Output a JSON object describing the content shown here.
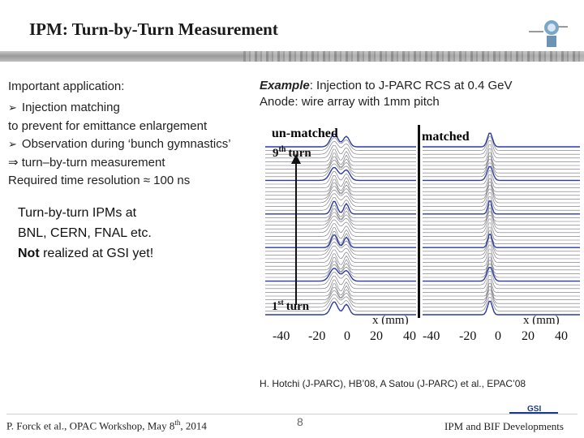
{
  "title": "IPM: Turn-by-Turn Measurement",
  "left": {
    "heading": "Important application:",
    "bullet1": "Injection matching",
    "bullet1_cont": "to prevent for emittance enlargement",
    "bullet2": "Observation during ‘bunch gymnastics’",
    "implies_symbol": "⇒",
    "implies_text": "turn–by-turn measurement",
    "resolution_prefix": "Required time resolution",
    "approx_symbol": "≈",
    "resolution_value": "100 ns"
  },
  "example": {
    "label": "Example",
    "text": ": Injection to J-PARC RCS at 0.4 GeV",
    "anode": "Anode: wire array with 1mm pitch"
  },
  "box": {
    "line1": "Turn-by-turn IPMs at",
    "line2": "BNL, CERN, FNAL etc.",
    "not": "Not",
    "line3_rest": " realized at GSI yet!"
  },
  "plot": {
    "label_unmatched": "un-matched",
    "label_matched": "matched",
    "turn_9_num": "9",
    "turn_9_sup": "th",
    "turn_9_word": "turn",
    "turn_1_num": "1",
    "turn_1_sup": "st",
    "turn_1_word": "turn",
    "xlabel_left": "x (mm)",
    "xlabel_right": "x (mm)",
    "ticks_left": [
      "-40",
      "-20",
      "0",
      "20",
      "40"
    ],
    "ticks_right": [
      "-40",
      "-20",
      "0",
      "20",
      "40"
    ]
  },
  "citation": "H. Hotchi (J-PARC), HB’08, A Satou (J-PARC) et al., EPAC’08",
  "footer": {
    "author": "P. Forck et al., OPAC Workshop, May 8",
    "author_sup": "th",
    "author_year": ", 2014",
    "page": "8",
    "right": "IPM and BIF Developments",
    "logo_text": "GSI"
  },
  "colors": {
    "red_label": "#c00000",
    "peak": "#2a3aa8"
  }
}
